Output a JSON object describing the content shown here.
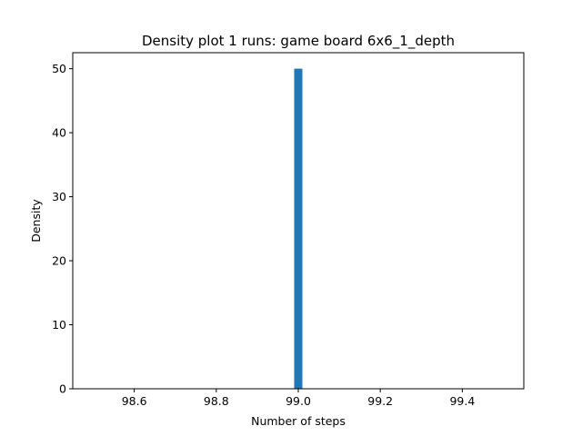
{
  "chart_data": {
    "type": "bar",
    "title": "Density plot 1 runs: game board 6x6_1_depth",
    "xlabel": "Number of steps",
    "ylabel": "Density",
    "xlim": [
      98.45,
      99.55
    ],
    "ylim": [
      0,
      52.5
    ],
    "xticks": [
      "98.6",
      "98.8",
      "99.0",
      "99.2",
      "99.4"
    ],
    "yticks": [
      "0",
      "10",
      "20",
      "30",
      "40",
      "50"
    ],
    "bars": [
      {
        "x_start": 98.99,
        "x_end": 99.01,
        "value": 50
      }
    ],
    "bar_color": "#1f77b4",
    "grid": false,
    "legend": "none"
  }
}
